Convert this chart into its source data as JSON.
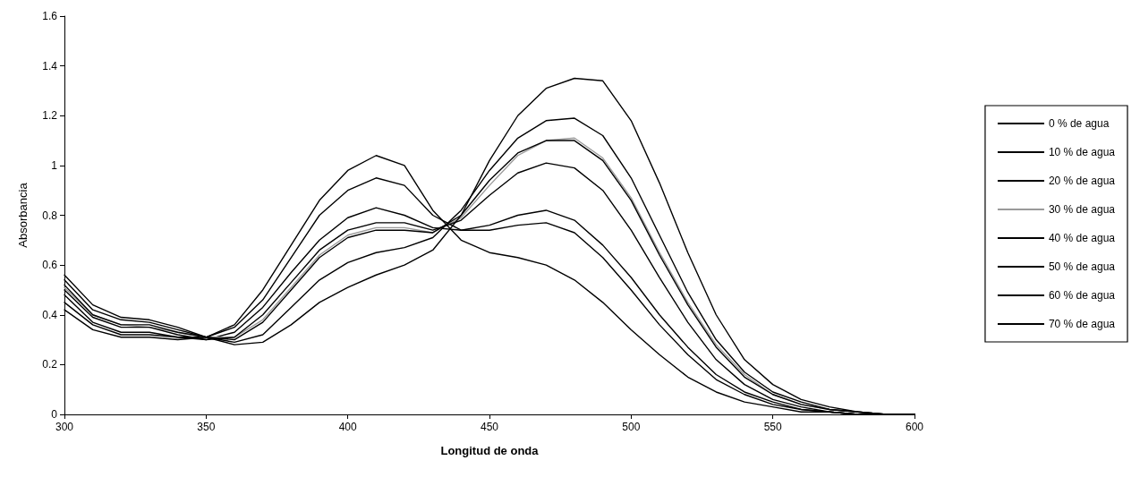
{
  "chart_data": {
    "type": "line",
    "xlabel": "Longitud de onda",
    "ylabel": "Absorbancia",
    "xlim": [
      300,
      600
    ],
    "xticks": [
      300,
      350,
      400,
      450,
      500,
      550,
      600
    ],
    "ylim": [
      0,
      1.6
    ],
    "yticks": [
      0,
      0.2,
      0.4,
      0.6,
      0.8,
      1,
      1.2,
      1.4,
      1.6
    ],
    "grid": false,
    "legend": "right",
    "marker": "none",
    "line_style": "solid",
    "x": [
      300,
      310,
      320,
      330,
      340,
      350,
      360,
      370,
      380,
      390,
      400,
      410,
      420,
      430,
      440,
      450,
      460,
      470,
      480,
      490,
      500,
      510,
      520,
      530,
      540,
      550,
      560,
      570,
      580,
      590,
      600
    ],
    "series": [
      {
        "name": "0 % de agua",
        "color": "#000000",
        "values": [
          0.42,
          0.34,
          0.31,
          0.31,
          0.3,
          0.31,
          0.36,
          0.5,
          0.68,
          0.86,
          0.98,
          1.04,
          1.0,
          0.82,
          0.7,
          0.65,
          0.63,
          0.6,
          0.54,
          0.45,
          0.34,
          0.24,
          0.15,
          0.09,
          0.05,
          0.03,
          0.01,
          0.01,
          0,
          0,
          0
        ]
      },
      {
        "name": "10 % de agua",
        "color": "#000000",
        "values": [
          0.45,
          0.36,
          0.32,
          0.32,
          0.31,
          0.31,
          0.35,
          0.46,
          0.63,
          0.8,
          0.9,
          0.95,
          0.92,
          0.8,
          0.74,
          0.74,
          0.76,
          0.77,
          0.73,
          0.63,
          0.5,
          0.36,
          0.24,
          0.14,
          0.08,
          0.04,
          0.02,
          0.01,
          0,
          0,
          0
        ]
      },
      {
        "name": "20 % de agua",
        "color": "#000000",
        "values": [
          0.48,
          0.37,
          0.33,
          0.33,
          0.31,
          0.3,
          0.33,
          0.43,
          0.57,
          0.7,
          0.79,
          0.83,
          0.8,
          0.75,
          0.74,
          0.76,
          0.8,
          0.82,
          0.78,
          0.68,
          0.55,
          0.4,
          0.27,
          0.16,
          0.09,
          0.05,
          0.02,
          0.01,
          0,
          0,
          0
        ]
      },
      {
        "name": "30 % de agua",
        "color": "#9a9a9a",
        "values": [
          0.51,
          0.4,
          0.36,
          0.35,
          0.33,
          0.31,
          0.31,
          0.38,
          0.51,
          0.64,
          0.72,
          0.75,
          0.75,
          0.73,
          0.79,
          0.92,
          1.04,
          1.1,
          1.11,
          1.03,
          0.87,
          0.65,
          0.45,
          0.28,
          0.16,
          0.08,
          0.04,
          0.02,
          0.01,
          0,
          0
        ]
      },
      {
        "name": "40 % de agua",
        "color": "#000000",
        "values": [
          0.5,
          0.39,
          0.35,
          0.35,
          0.32,
          0.3,
          0.31,
          0.4,
          0.53,
          0.66,
          0.74,
          0.77,
          0.77,
          0.74,
          0.78,
          0.88,
          0.97,
          1.01,
          0.99,
          0.9,
          0.74,
          0.55,
          0.37,
          0.22,
          0.12,
          0.06,
          0.03,
          0.01,
          0,
          0,
          0
        ]
      },
      {
        "name": "50 % de agua",
        "color": "#000000",
        "values": [
          0.52,
          0.4,
          0.36,
          0.36,
          0.33,
          0.31,
          0.3,
          0.37,
          0.5,
          0.63,
          0.71,
          0.74,
          0.74,
          0.73,
          0.8,
          0.94,
          1.05,
          1.1,
          1.1,
          1.02,
          0.86,
          0.64,
          0.44,
          0.27,
          0.15,
          0.08,
          0.04,
          0.02,
          0.01,
          0,
          0
        ]
      },
      {
        "name": "60 % de agua",
        "color": "#000000",
        "values": [
          0.54,
          0.42,
          0.38,
          0.37,
          0.34,
          0.31,
          0.29,
          0.32,
          0.43,
          0.54,
          0.61,
          0.65,
          0.67,
          0.71,
          0.82,
          0.98,
          1.11,
          1.18,
          1.19,
          1.12,
          0.95,
          0.72,
          0.49,
          0.3,
          0.17,
          0.09,
          0.05,
          0.02,
          0.01,
          0,
          0
        ]
      },
      {
        "name": "70 % de agua",
        "color": "#000000",
        "values": [
          0.56,
          0.44,
          0.39,
          0.38,
          0.35,
          0.31,
          0.28,
          0.29,
          0.36,
          0.45,
          0.51,
          0.56,
          0.6,
          0.66,
          0.8,
          1.02,
          1.2,
          1.31,
          1.35,
          1.34,
          1.18,
          0.93,
          0.65,
          0.4,
          0.22,
          0.12,
          0.06,
          0.03,
          0.01,
          0,
          0
        ]
      }
    ]
  }
}
